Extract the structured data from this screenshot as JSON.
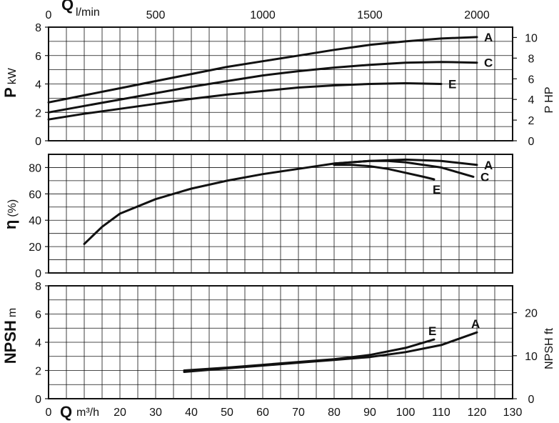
{
  "chart_data": [
    {
      "id": "power",
      "type": "line",
      "x_label_top": "Q",
      "x_unit_top": "l/min",
      "x_ticks_top": [
        "0",
        "500",
        "1000",
        "1500",
        "2000"
      ],
      "ylabel": "P",
      "ylabel_unit": "kW",
      "ylim": [
        0,
        8
      ],
      "y_ticks": [
        "0",
        "2",
        "4",
        "6",
        "8"
      ],
      "y2label": "P HP",
      "y2_ticks": [
        "0",
        "2",
        "4",
        "6",
        "8",
        "10"
      ],
      "grid": true,
      "series": [
        {
          "name": "A",
          "x": [
            0,
            10,
            20,
            30,
            40,
            50,
            60,
            70,
            80,
            90,
            100,
            110,
            120
          ],
          "values": [
            2.7,
            3.2,
            3.7,
            4.2,
            4.7,
            5.2,
            5.6,
            6.0,
            6.4,
            6.75,
            7.0,
            7.2,
            7.3
          ]
        },
        {
          "name": "C",
          "x": [
            0,
            10,
            20,
            30,
            40,
            50,
            60,
            70,
            80,
            90,
            100,
            110,
            120
          ],
          "values": [
            2.0,
            2.45,
            2.9,
            3.35,
            3.8,
            4.2,
            4.6,
            4.9,
            5.15,
            5.35,
            5.5,
            5.55,
            5.5
          ]
        },
        {
          "name": "E",
          "x": [
            0,
            10,
            20,
            30,
            40,
            50,
            60,
            70,
            80,
            90,
            100,
            110
          ],
          "values": [
            1.5,
            1.9,
            2.25,
            2.6,
            2.95,
            3.25,
            3.5,
            3.75,
            3.9,
            4.0,
            4.05,
            4.0
          ]
        }
      ]
    },
    {
      "id": "efficiency",
      "type": "line",
      "ylabel": "η",
      "ylabel_unit": "(%)",
      "ylim": [
        0,
        90
      ],
      "y_ticks": [
        "0",
        "20",
        "40",
        "60",
        "80"
      ],
      "grid": true,
      "series": [
        {
          "name": "A",
          "x": [
            10,
            15,
            20,
            30,
            40,
            50,
            60,
            70,
            80,
            90,
            100,
            110,
            120
          ],
          "values": [
            22,
            35,
            45,
            56,
            64,
            70,
            75,
            79,
            83,
            85,
            86,
            85,
            82
          ]
        },
        {
          "name": "C",
          "x": [
            80,
            90,
            95,
            100,
            110,
            119
          ],
          "values": [
            83,
            85,
            85,
            84,
            80,
            73
          ]
        },
        {
          "name": "E",
          "x": [
            80,
            85,
            90,
            95,
            100,
            105,
            108
          ],
          "values": [
            82,
            82,
            81,
            79,
            76,
            73,
            71
          ]
        }
      ]
    },
    {
      "id": "npsh",
      "type": "line",
      "ylabel": "NPSH",
      "ylabel_unit": "m",
      "ylim": [
        0,
        8
      ],
      "y_ticks": [
        "0",
        "2",
        "4",
        "6",
        "8"
      ],
      "y2label": "NPSH ft",
      "y2_ticks": [
        "0",
        "10",
        "20"
      ],
      "xlabel": "Q",
      "x_unit": "m³/h",
      "xlim": [
        0,
        130
      ],
      "x_ticks": [
        "0",
        "10",
        "20",
        "30",
        "40",
        "50",
        "60",
        "70",
        "80",
        "90",
        "100",
        "110",
        "120",
        "130"
      ],
      "grid": true,
      "series": [
        {
          "name": "E",
          "x": [
            38,
            50,
            60,
            70,
            80,
            90,
            100,
            108
          ],
          "values": [
            2.0,
            2.2,
            2.4,
            2.6,
            2.8,
            3.1,
            3.6,
            4.2
          ]
        },
        {
          "name": "A",
          "x": [
            38,
            50,
            60,
            70,
            80,
            90,
            100,
            110,
            120
          ],
          "values": [
            1.9,
            2.15,
            2.35,
            2.55,
            2.75,
            2.95,
            3.3,
            3.8,
            4.7
          ]
        }
      ]
    }
  ]
}
